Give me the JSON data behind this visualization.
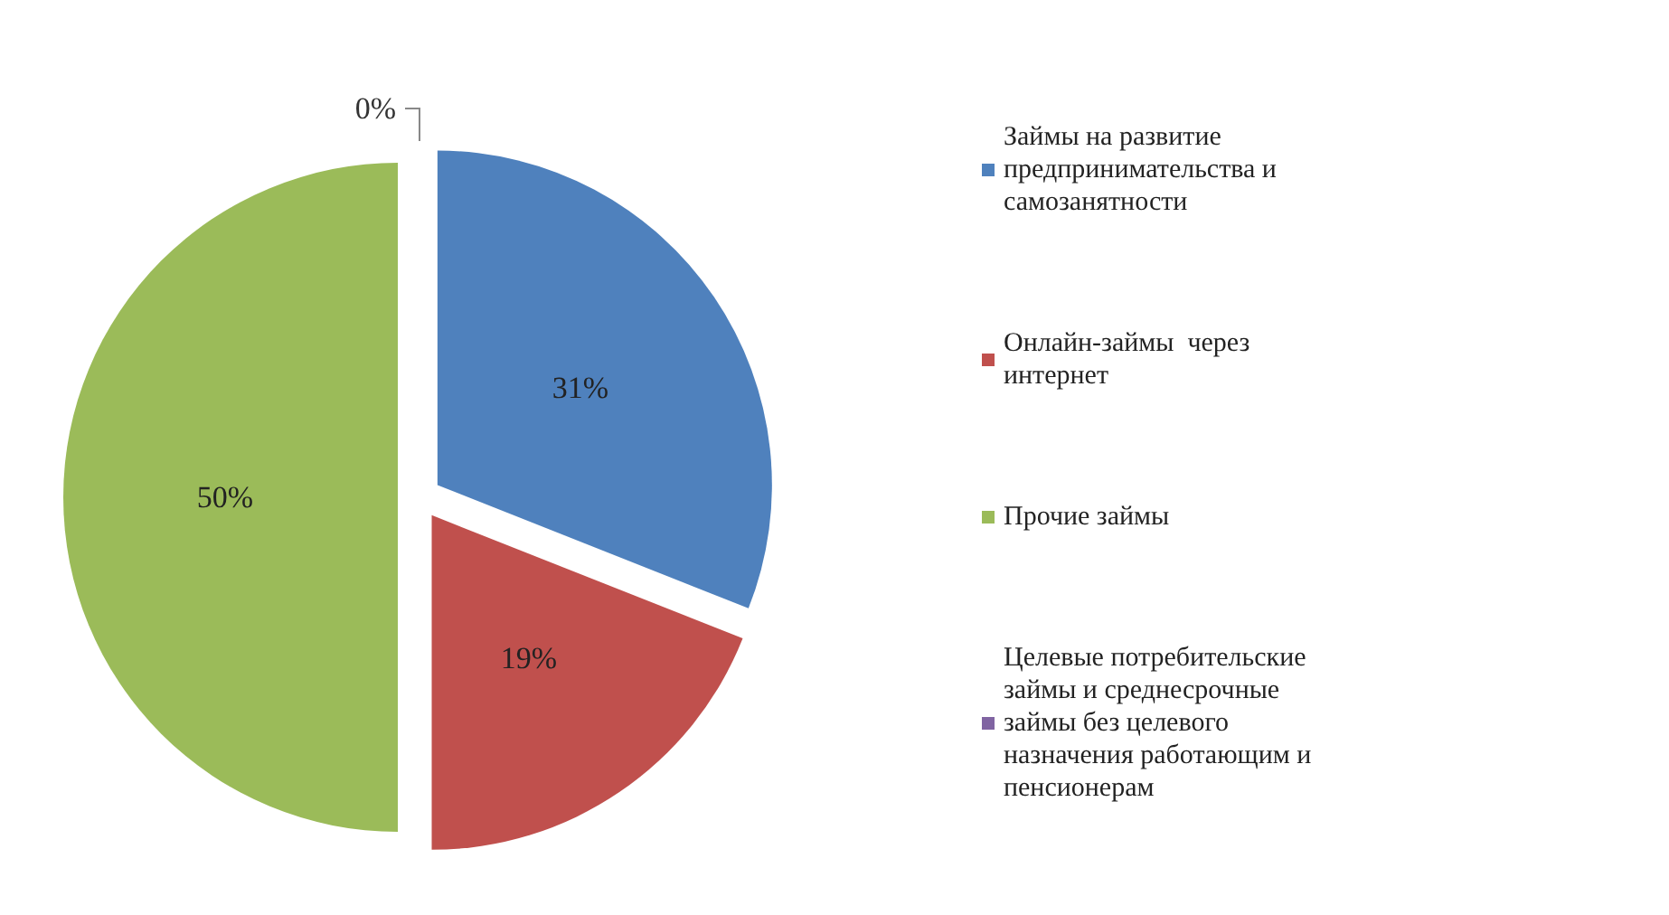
{
  "chart_data": {
    "type": "pie",
    "categories": [
      "Займы на развитие предпринимательства и самозанятности",
      "Онлайн-займы  через интернет",
      "Прочие займы",
      "Целевые потребительские займы и среднесрочные займы без целевого назначения работающим и пенсионерам"
    ],
    "values": [
      31,
      19,
      50,
      0
    ],
    "colors": [
      "#4f81bd",
      "#c0504d",
      "#9bbb59",
      "#8064a2"
    ],
    "value_labels": [
      "31%",
      "19%",
      "50%",
      "0%"
    ],
    "legend": "right"
  }
}
